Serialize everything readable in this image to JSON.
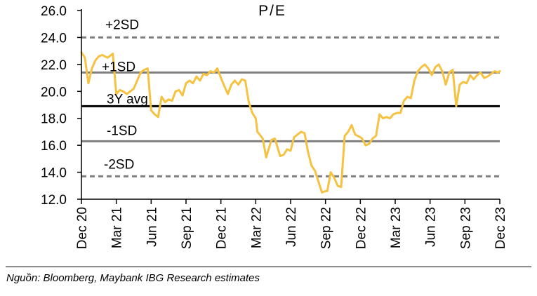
{
  "chart_data": {
    "type": "line",
    "title": "P/E",
    "xlabel": "",
    "ylabel": "",
    "ylim": [
      12.0,
      26.0
    ],
    "yticks": [
      "12.0",
      "14.0",
      "16.0",
      "18.0",
      "20.0",
      "22.0",
      "24.0",
      "26.0"
    ],
    "xticks": [
      "Dec 20",
      "Mar 21",
      "Jun 21",
      "Sep 21",
      "Dec 21",
      "Mar 22",
      "Jun 22",
      "Sep 22",
      "Dec 22",
      "Mar 23",
      "Jun 23",
      "Sep 23",
      "Dec 23"
    ],
    "reference_lines": [
      {
        "name": "+2SD",
        "value": 24.0,
        "style": "dashed",
        "color": "#7f7f7f"
      },
      {
        "name": "+1SD",
        "value": 21.4,
        "style": "solid",
        "color": "#7f7f7f"
      },
      {
        "name": "3Y avg",
        "value": 18.9,
        "style": "solid",
        "color": "#000000"
      },
      {
        "name": "-1SD",
        "value": 16.3,
        "style": "solid",
        "color": "#7f7f7f"
      },
      {
        "name": "-2SD",
        "value": 13.7,
        "style": "dashed",
        "color": "#7f7f7f"
      }
    ],
    "series": [
      {
        "name": "P/E",
        "color": "#f5c242",
        "x": [
          0,
          0.1,
          0.2,
          0.3,
          0.4,
          0.5,
          0.6,
          0.75,
          0.9,
          1.0,
          1.1,
          1.2,
          1.3,
          1.5,
          1.7,
          1.8,
          1.9,
          2.0,
          2.1,
          2.2,
          2.3,
          2.4,
          2.5,
          2.6,
          2.7,
          2.8,
          2.9,
          3.0,
          3.1,
          3.2,
          3.3,
          3.4,
          3.5,
          3.6,
          3.7,
          3.8,
          3.9,
          4.0,
          4.1,
          4.2,
          4.3,
          4.4,
          4.5,
          4.6,
          4.7,
          4.8,
          4.9,
          5.0,
          5.05,
          5.2,
          5.3,
          5.45,
          5.55,
          5.7,
          5.8,
          5.9,
          6.0,
          6.1,
          6.2,
          6.3,
          6.4,
          6.5,
          6.6,
          6.7,
          6.8,
          6.9,
          7.0,
          7.05,
          7.15,
          7.25,
          7.35,
          7.45,
          7.55,
          7.65,
          7.75,
          7.85,
          8.0,
          8.05,
          8.15,
          8.25,
          8.35,
          8.45,
          8.55,
          8.65,
          8.75,
          8.85,
          8.95,
          9.05,
          9.15,
          9.25,
          9.35,
          9.45,
          9.55,
          9.65,
          9.75,
          9.85,
          9.95,
          10.05,
          10.15,
          10.25,
          10.35,
          10.45,
          10.55,
          10.65,
          10.75,
          10.85,
          10.95,
          11.05,
          11.15,
          11.25,
          11.35,
          11.45,
          11.55,
          11.65,
          11.75,
          11.85,
          11.95,
          12.0
        ],
        "y": [
          22.9,
          22.5,
          20.6,
          21.7,
          22.3,
          22.6,
          22.7,
          22.5,
          22.8,
          19.8,
          20.1,
          20.0,
          19.8,
          20.2,
          21.4,
          21.6,
          21.7,
          18.6,
          18.3,
          18.1,
          19.6,
          19.2,
          19.4,
          19.3,
          20.0,
          20.1,
          19.7,
          20.6,
          20.8,
          20.6,
          21.1,
          20.8,
          21.3,
          21.2,
          21.5,
          21.4,
          21.7,
          21.0,
          20.4,
          19.8,
          20.5,
          20.8,
          20.5,
          20.9,
          20.8,
          19.2,
          18.4,
          18.0,
          17.0,
          16.5,
          15.1,
          16.4,
          16.5,
          15.2,
          15.3,
          15.7,
          15.6,
          16.6,
          16.8,
          17.0,
          16.9,
          15.5,
          14.5,
          14.1,
          13.3,
          12.5,
          12.6,
          12.6,
          14.0,
          13.6,
          13.0,
          12.9,
          16.7,
          17.0,
          17.5,
          16.8,
          16.6,
          16.5,
          16.0,
          16.1,
          16.5,
          16.7,
          18.3,
          18.0,
          18.1,
          18.0,
          18.3,
          18.4,
          18.4,
          19.3,
          19.6,
          19.5,
          20.8,
          21.5,
          21.8,
          22.0,
          21.7,
          21.2,
          21.8,
          22.0,
          21.5,
          20.5,
          21.4,
          21.6,
          18.9,
          20.5,
          20.7,
          20.6,
          21.2,
          20.9,
          21.2,
          21.4,
          21.0,
          21.1,
          21.3,
          21.5,
          21.4,
          21.5
        ]
      }
    ]
  },
  "source_note": "Nguồn: Bloomberg, Maybank IBG Research estimates"
}
